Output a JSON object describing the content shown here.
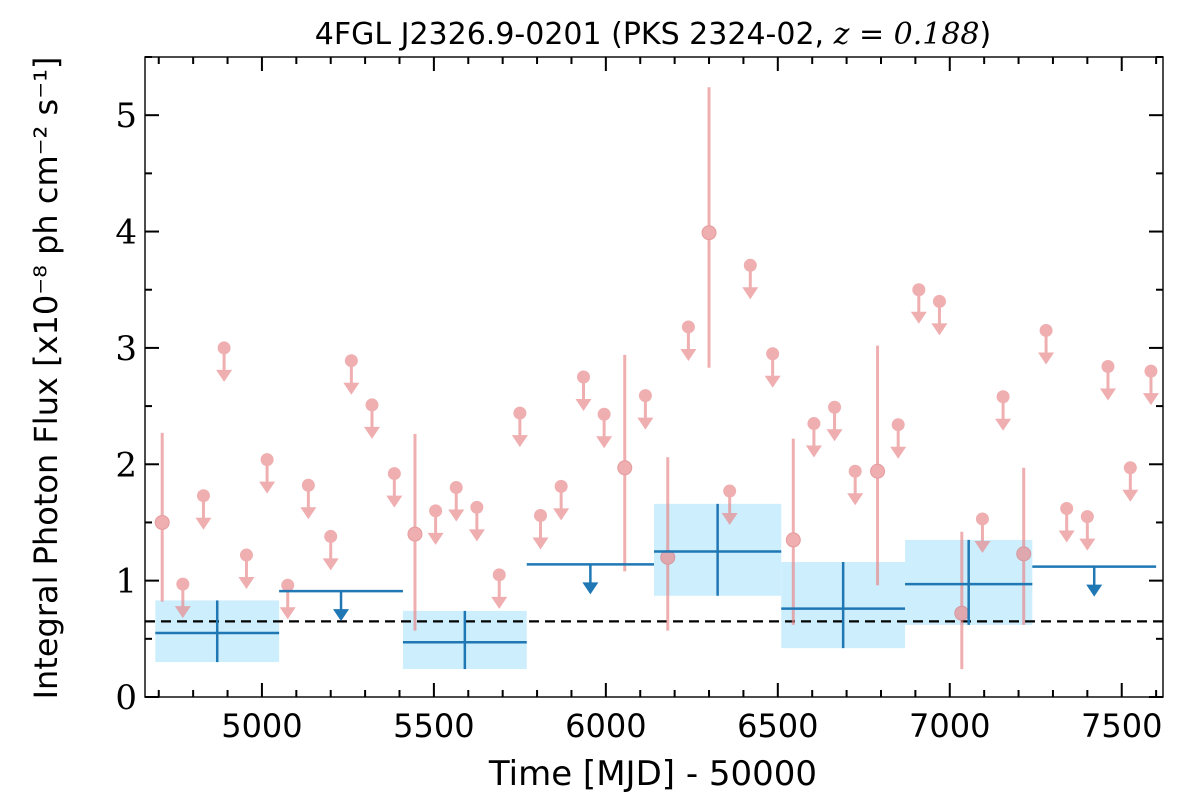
{
  "chart_data": {
    "type": "scatter",
    "title_prefix": "4FGL J2326.9-0201 (PKS 2324-02, ",
    "title_math": "z = 0.188",
    "title_suffix": ")",
    "xlabel": "Time [MJD] - 50000",
    "ylabel": "Integral Photon Flux [x10⁻⁸ ph cm⁻² s⁻¹]",
    "xlim": [
      4660,
      7620
    ],
    "ylim": [
      0,
      5.5
    ],
    "xticks": [
      5000,
      5500,
      6000,
      6500,
      7000,
      7500
    ],
    "yticks": [
      0,
      1,
      2,
      3,
      4,
      5
    ],
    "grid": false,
    "legend": "none",
    "baseline_flux": 0.65,
    "colors": {
      "short_bins": "#e8888b",
      "long_bins": "#1f77b4",
      "long_bins_band": "#cdeefc",
      "baseline": "#000000"
    },
    "short_bins": [
      {
        "x": 4710,
        "y": 1.5,
        "type": "detection",
        "lo": 0.82,
        "hi": 2.27
      },
      {
        "x": 4770,
        "y": 0.97,
        "type": "upper_limit"
      },
      {
        "x": 4830,
        "y": 1.73,
        "type": "upper_limit"
      },
      {
        "x": 4890,
        "y": 3.0,
        "type": "upper_limit"
      },
      {
        "x": 4955,
        "y": 1.22,
        "type": "upper_limit"
      },
      {
        "x": 5015,
        "y": 2.04,
        "type": "upper_limit"
      },
      {
        "x": 5075,
        "y": 0.96,
        "type": "upper_limit"
      },
      {
        "x": 5135,
        "y": 1.82,
        "type": "upper_limit"
      },
      {
        "x": 5200,
        "y": 1.38,
        "type": "upper_limit"
      },
      {
        "x": 5260,
        "y": 2.89,
        "type": "upper_limit"
      },
      {
        "x": 5320,
        "y": 2.51,
        "type": "upper_limit"
      },
      {
        "x": 5385,
        "y": 1.92,
        "type": "upper_limit"
      },
      {
        "x": 5445,
        "y": 1.4,
        "type": "detection",
        "lo": 0.57,
        "hi": 2.26
      },
      {
        "x": 5505,
        "y": 1.6,
        "type": "upper_limit"
      },
      {
        "x": 5565,
        "y": 1.8,
        "type": "upper_limit"
      },
      {
        "x": 5625,
        "y": 1.63,
        "type": "upper_limit"
      },
      {
        "x": 5690,
        "y": 1.05,
        "type": "upper_limit"
      },
      {
        "x": 5750,
        "y": 2.44,
        "type": "upper_limit"
      },
      {
        "x": 5810,
        "y": 1.56,
        "type": "upper_limit"
      },
      {
        "x": 5870,
        "y": 1.81,
        "type": "upper_limit"
      },
      {
        "x": 5935,
        "y": 2.75,
        "type": "upper_limit"
      },
      {
        "x": 5995,
        "y": 2.43,
        "type": "upper_limit"
      },
      {
        "x": 6055,
        "y": 1.97,
        "type": "detection",
        "lo": 1.08,
        "hi": 2.94
      },
      {
        "x": 6115,
        "y": 2.59,
        "type": "upper_limit"
      },
      {
        "x": 6180,
        "y": 1.2,
        "type": "detection",
        "lo": 0.57,
        "hi": 2.06
      },
      {
        "x": 6240,
        "y": 3.18,
        "type": "upper_limit"
      },
      {
        "x": 6300,
        "y": 3.99,
        "type": "detection",
        "lo": 2.83,
        "hi": 5.24
      },
      {
        "x": 6360,
        "y": 1.77,
        "type": "upper_limit"
      },
      {
        "x": 6420,
        "y": 3.71,
        "type": "upper_limit"
      },
      {
        "x": 6485,
        "y": 2.95,
        "type": "upper_limit"
      },
      {
        "x": 6545,
        "y": 1.35,
        "type": "detection",
        "lo": 0.62,
        "hi": 2.22
      },
      {
        "x": 6605,
        "y": 2.35,
        "type": "upper_limit"
      },
      {
        "x": 6665,
        "y": 2.49,
        "type": "upper_limit"
      },
      {
        "x": 6725,
        "y": 1.94,
        "type": "upper_limit"
      },
      {
        "x": 6790,
        "y": 1.94,
        "type": "detection",
        "lo": 0.96,
        "hi": 3.02
      },
      {
        "x": 6850,
        "y": 2.34,
        "type": "upper_limit"
      },
      {
        "x": 6910,
        "y": 3.5,
        "type": "upper_limit"
      },
      {
        "x": 6970,
        "y": 3.4,
        "type": "upper_limit"
      },
      {
        "x": 7035,
        "y": 0.72,
        "type": "detection",
        "lo": 0.24,
        "hi": 1.42
      },
      {
        "x": 7095,
        "y": 1.53,
        "type": "upper_limit"
      },
      {
        "x": 7155,
        "y": 2.58,
        "type": "upper_limit"
      },
      {
        "x": 7215,
        "y": 1.23,
        "type": "detection",
        "lo": 0.62,
        "hi": 1.97
      },
      {
        "x": 7280,
        "y": 3.15,
        "type": "upper_limit"
      },
      {
        "x": 7340,
        "y": 1.62,
        "type": "upper_limit"
      },
      {
        "x": 7400,
        "y": 1.55,
        "type": "upper_limit"
      },
      {
        "x": 7460,
        "y": 2.84,
        "type": "upper_limit"
      },
      {
        "x": 7525,
        "y": 1.97,
        "type": "upper_limit"
      },
      {
        "x": 7585,
        "y": 2.8,
        "type": "upper_limit"
      }
    ],
    "long_bins": [
      {
        "x_start": 4690,
        "x_end": 5050,
        "x": 4870,
        "y": 0.55,
        "type": "detection",
        "lo": 0.3,
        "hi": 0.83
      },
      {
        "x_start": 5050,
        "x_end": 5410,
        "x": 5230,
        "y": 0.91,
        "type": "upper_limit"
      },
      {
        "x_start": 5410,
        "x_end": 5770,
        "x": 5590,
        "y": 0.47,
        "type": "detection",
        "lo": 0.24,
        "hi": 0.74
      },
      {
        "x_start": 5770,
        "x_end": 6140,
        "x": 5955,
        "y": 1.14,
        "type": "upper_limit"
      },
      {
        "x_start": 6140,
        "x_end": 6510,
        "x": 6325,
        "y": 1.25,
        "type": "detection",
        "lo": 0.87,
        "hi": 1.66
      },
      {
        "x_start": 6510,
        "x_end": 6870,
        "x": 6690,
        "y": 0.76,
        "type": "detection",
        "lo": 0.42,
        "hi": 1.16
      },
      {
        "x_start": 6870,
        "x_end": 7240,
        "x": 7055,
        "y": 0.97,
        "type": "detection",
        "lo": 0.62,
        "hi": 1.35
      },
      {
        "x_start": 7240,
        "x_end": 7600,
        "x": 7420,
        "y": 1.12,
        "type": "upper_limit"
      }
    ]
  }
}
